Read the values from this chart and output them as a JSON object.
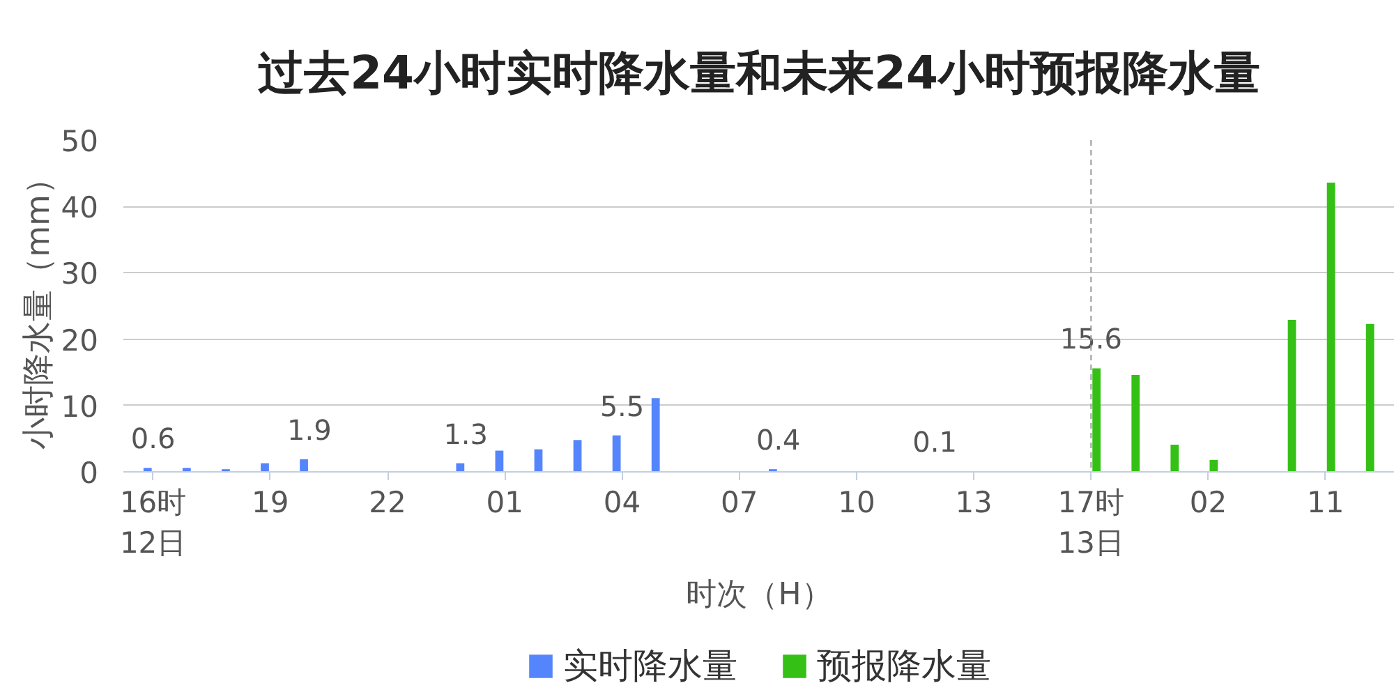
{
  "chart_data": {
    "type": "bar",
    "title": "过去24小时实时降水量和未来24小时预报降水量",
    "xlabel": "时次（H）",
    "ylabel": "小时降水量（mm）",
    "categories": [
      "16时\n12日",
      null,
      null,
      "19",
      null,
      null,
      "22",
      null,
      null,
      "01",
      null,
      null,
      "04",
      null,
      null,
      "07",
      null,
      null,
      "10",
      null,
      null,
      "13",
      null,
      null,
      "17时\n13日",
      null,
      null,
      "02",
      null,
      null,
      "11",
      null
    ],
    "series": [
      {
        "name": "实时降水量",
        "color": "#5585fc",
        "values": [
          0.6,
          0.6,
          0.4,
          1.3,
          1.9,
          null,
          null,
          null,
          1.3,
          3.2,
          3.4,
          4.8,
          5.5,
          11.1,
          null,
          null,
          0.4,
          null,
          null,
          null,
          0.1,
          null,
          null,
          null,
          null,
          null,
          null,
          null,
          null,
          null,
          null,
          null
        ],
        "value_labels": [
          "0.6",
          null,
          null,
          null,
          "1.9",
          null,
          null,
          null,
          "1.3",
          null,
          null,
          null,
          "5.5",
          null,
          null,
          null,
          "0.4",
          null,
          null,
          null,
          "0.1",
          null,
          null,
          null,
          null,
          null,
          null,
          null,
          null,
          null,
          null,
          null
        ]
      },
      {
        "name": "预报降水量",
        "color": "#35c016",
        "values": [
          null,
          null,
          null,
          null,
          null,
          null,
          null,
          null,
          null,
          null,
          null,
          null,
          null,
          null,
          null,
          null,
          null,
          null,
          null,
          null,
          null,
          null,
          null,
          null,
          15.6,
          14.6,
          4.1,
          1.8,
          null,
          22.9,
          43.6,
          22.3
        ],
        "value_labels": [
          null,
          null,
          null,
          null,
          null,
          null,
          null,
          null,
          null,
          null,
          null,
          null,
          null,
          null,
          null,
          null,
          null,
          null,
          null,
          null,
          null,
          null,
          null,
          null,
          "15.6",
          null,
          null,
          null,
          null,
          null,
          null,
          null
        ]
      }
    ],
    "ylim": [
      0,
      50
    ],
    "yticks": [
      0,
      10,
      20,
      30,
      40,
      50
    ],
    "grid": "y",
    "legend": "bottom",
    "ref_lines": [
      {
        "axis": "x",
        "value": "17时\n13日",
        "color": "#999999",
        "line_style": "dashed"
      }
    ]
  }
}
